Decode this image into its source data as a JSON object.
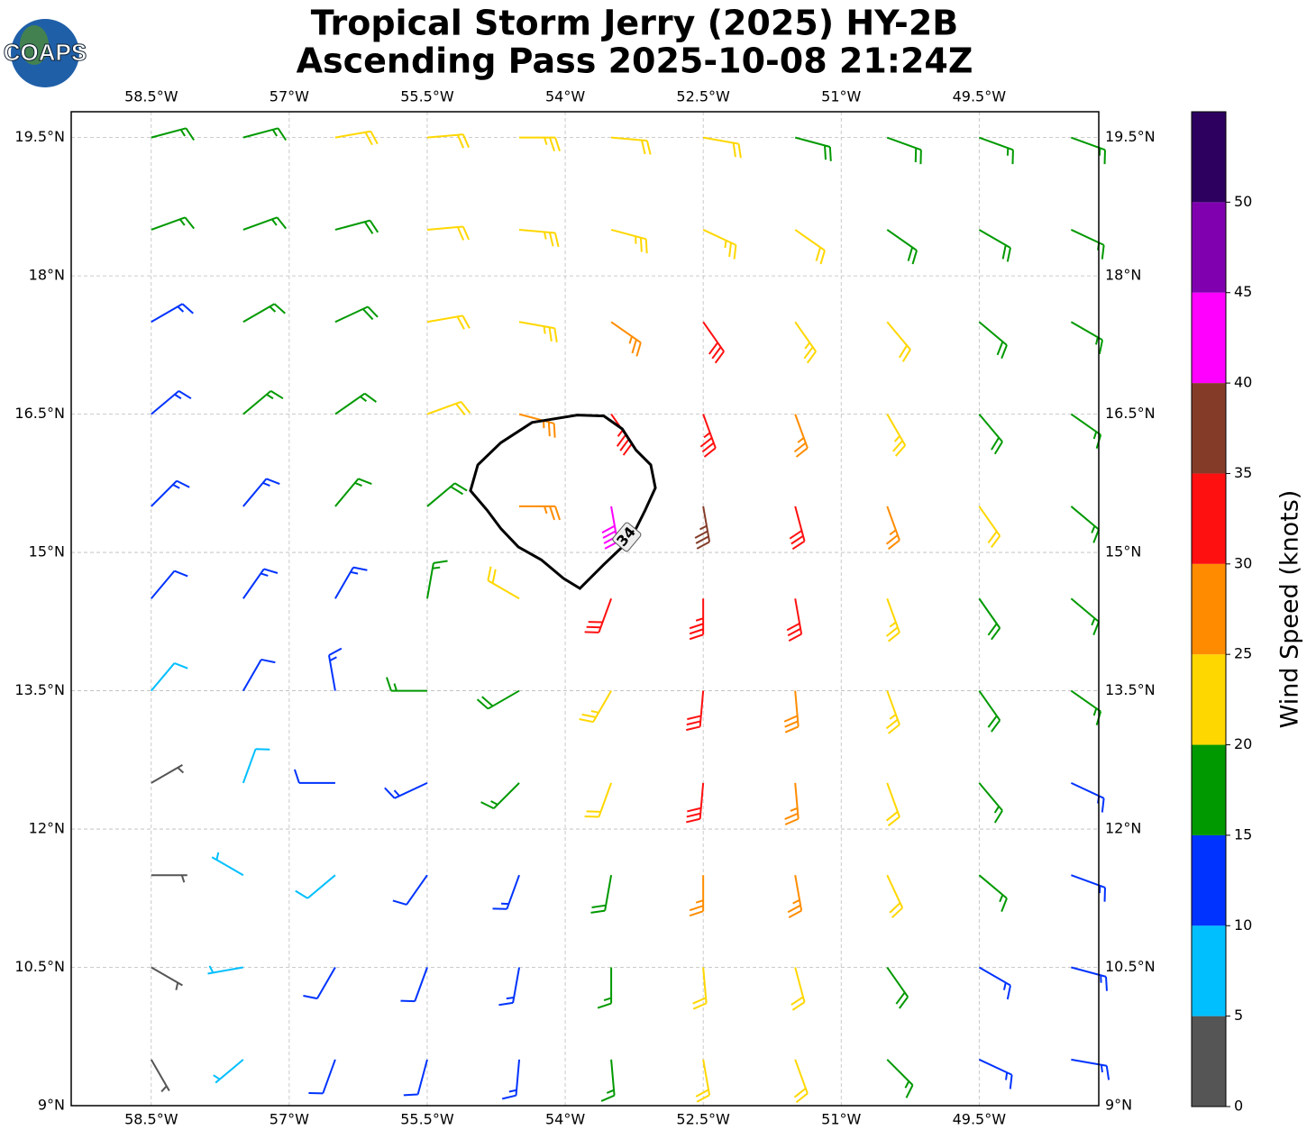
{
  "chart_data": {
    "type": "barbs",
    "title": "Tropical Storm Jerry (2025) HY-2B",
    "subtitle": "Ascending Pass 2025-10-08 21:24Z",
    "logo": "COAPS",
    "xlim": [
      -59.37,
      -48.2
    ],
    "ylim": [
      9,
      19.78
    ],
    "xticks": [
      {
        "value": -58.5,
        "label": "58.5°W"
      },
      {
        "value": -57,
        "label": "57°W"
      },
      {
        "value": -55.5,
        "label": "55.5°W"
      },
      {
        "value": -54,
        "label": "54°W"
      },
      {
        "value": -52.5,
        "label": "52.5°W"
      },
      {
        "value": -51,
        "label": "51°W"
      },
      {
        "value": -49.5,
        "label": "49.5°W"
      }
    ],
    "yticks": [
      {
        "value": 9,
        "label": "9°N"
      },
      {
        "value": 10.5,
        "label": "10.5°N"
      },
      {
        "value": 12,
        "label": "12°N"
      },
      {
        "value": 13.5,
        "label": "13.5°N"
      },
      {
        "value": 15,
        "label": "15°N"
      },
      {
        "value": 16.5,
        "label": "16.5°N"
      },
      {
        "value": 18,
        "label": "18°N"
      },
      {
        "value": 19.5,
        "label": "19.5°N"
      }
    ],
    "grid": true,
    "x": [
      -58.5,
      -57.5,
      -56.5,
      -55.5,
      -54.5,
      -53.5,
      -52.5,
      -51.5,
      -50.5,
      -49.5,
      -48.5
    ],
    "y": [
      19.5,
      18.5,
      17.5,
      16.5,
      15.5,
      14.5,
      13.5,
      12.5,
      11.5,
      10.5,
      9.5
    ],
    "speed": [
      [
        17,
        17,
        21,
        22,
        23,
        22,
        21,
        19,
        18,
        17,
        17
      ],
      [
        16,
        17,
        19,
        22,
        23,
        24,
        23,
        21,
        19,
        18,
        17
      ],
      [
        14,
        16,
        18,
        22,
        24,
        27,
        30,
        24,
        21,
        18,
        17
      ],
      [
        13,
        15,
        17,
        21,
        26,
        33,
        33,
        27,
        23,
        19,
        17
      ],
      [
        13,
        14,
        16,
        19,
        27,
        42,
        37,
        30,
        25,
        20,
        17
      ],
      [
        12,
        13,
        14,
        16,
        20,
        30,
        33,
        30,
        24,
        19,
        16
      ],
      [
        8,
        10,
        13,
        15,
        19,
        24,
        32,
        28,
        23,
        18,
        15
      ],
      [
        4,
        8,
        10,
        13,
        16,
        21,
        30,
        27,
        22,
        17,
        14
      ],
      [
        3,
        6,
        9,
        12,
        14,
        18,
        27,
        26,
        21,
        16,
        14
      ],
      [
        3,
        7,
        10,
        12,
        13,
        17,
        22,
        22,
        18,
        14,
        13
      ],
      [
        4,
        7,
        10,
        12,
        13,
        16,
        20,
        20,
        16,
        13,
        13
      ]
    ],
    "direction": [
      [
        75,
        75,
        80,
        85,
        90,
        95,
        100,
        105,
        110,
        110,
        110
      ],
      [
        70,
        70,
        75,
        85,
        95,
        105,
        115,
        125,
        125,
        120,
        115
      ],
      [
        60,
        60,
        65,
        80,
        100,
        125,
        145,
        145,
        140,
        130,
        120
      ],
      [
        50,
        50,
        55,
        70,
        105,
        145,
        160,
        160,
        150,
        140,
        125
      ],
      [
        45,
        40,
        40,
        50,
        90,
        170,
        170,
        165,
        160,
        145,
        130
      ],
      [
        40,
        35,
        30,
        10,
        300,
        200,
        180,
        170,
        160,
        145,
        130
      ],
      [
        40,
        30,
        350,
        270,
        240,
        210,
        185,
        175,
        160,
        145,
        125
      ],
      [
        60,
        20,
        270,
        245,
        225,
        200,
        185,
        175,
        160,
        140,
        115
      ],
      [
        90,
        300,
        230,
        215,
        200,
        190,
        180,
        170,
        155,
        130,
        110
      ],
      [
        120,
        260,
        210,
        200,
        190,
        180,
        175,
        165,
        145,
        120,
        105
      ],
      [
        150,
        230,
        200,
        195,
        185,
        175,
        170,
        160,
        135,
        115,
        100
      ]
    ],
    "contour": {
      "level": 34,
      "lon": [
        -55.03,
        -54.95,
        -54.7,
        -54.36,
        -53.87,
        -53.58,
        -53.38,
        -53.23,
        -53.07,
        -53.02,
        -53.13,
        -53.23,
        -53.38,
        -53.58,
        -53.84,
        -54.02,
        -54.26,
        -54.51,
        -54.7,
        -54.85
      ],
      "lat": [
        15.67,
        15.95,
        16.19,
        16.41,
        16.49,
        16.48,
        16.34,
        16.11,
        15.95,
        15.7,
        15.46,
        15.26,
        15.06,
        14.87,
        14.61,
        14.72,
        14.92,
        15.06,
        15.26,
        15.46
      ]
    },
    "colorbar": {
      "label": "Wind Speed (knots)",
      "bounds": [
        0,
        5,
        10,
        15,
        20,
        25,
        30,
        35,
        40,
        45,
        50,
        55
      ],
      "colors": [
        "#555555",
        "#00bfff",
        "#0033ff",
        "#009900",
        "#ffd700",
        "#ff8c00",
        "#ff1010",
        "#843c29",
        "#ff00ff",
        "#8000b0",
        "#2d0060"
      ],
      "ticks": [
        0,
        5,
        10,
        15,
        20,
        25,
        30,
        35,
        40,
        45,
        50
      ]
    }
  }
}
